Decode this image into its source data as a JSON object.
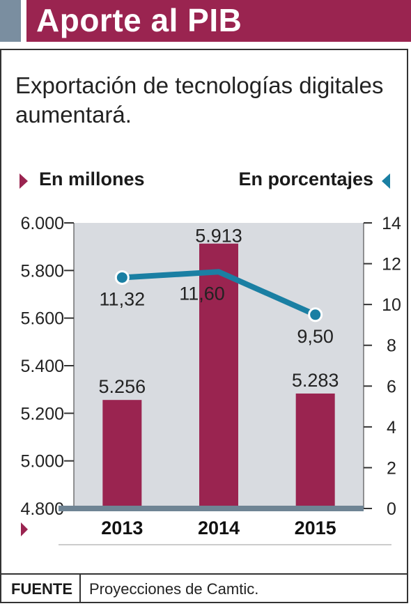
{
  "header": {
    "title": "Aporte al PIB"
  },
  "subtitle": "Exportación de tecnologías digitales aumentará.",
  "left_axis_label": "En millones",
  "right_axis_label": "En porcentajes",
  "source": {
    "label": "FUENTE",
    "text": "Proyecciones de Camtic."
  },
  "colors": {
    "bar": "#9a2450",
    "line": "#1a7fa3",
    "plot_bg": "#d8dbe0",
    "baseline": "#6f8494"
  },
  "chart_data": {
    "type": "bar+line",
    "categories": [
      "2013",
      "2014",
      "2015"
    ],
    "bars": {
      "values": [
        5256,
        5913,
        5283
      ],
      "labels": [
        "5.256",
        "5.913",
        "5.283"
      ]
    },
    "line": {
      "values": [
        11.32,
        11.6,
        9.5
      ],
      "labels": [
        "11,32",
        "11,60",
        "9,50"
      ]
    },
    "left_axis": {
      "min": 4800,
      "max": 6000,
      "ticks": [
        "4.800",
        "5.000",
        "5.200",
        "5.400",
        "5.600",
        "5.800",
        "6.000"
      ]
    },
    "right_axis": {
      "min": 0,
      "max": 14,
      "ticks": [
        "0",
        "2",
        "4",
        "6",
        "8",
        "10",
        "12",
        "14"
      ]
    }
  }
}
